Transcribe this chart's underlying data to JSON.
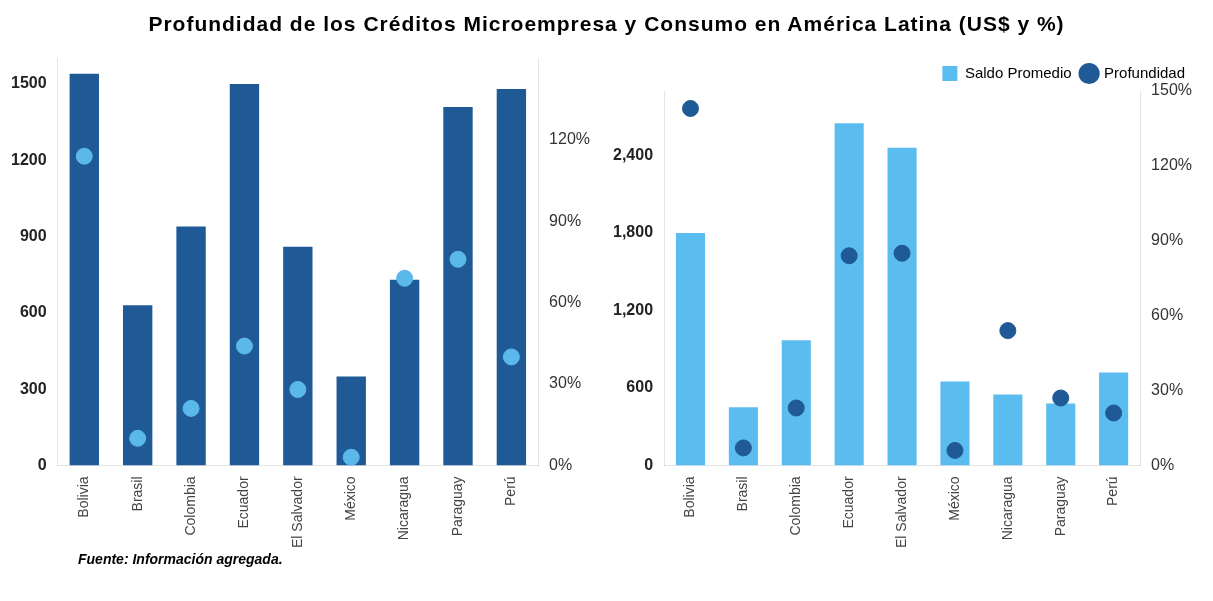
{
  "chart_data": [
    {
      "type": "bar",
      "title": "Profundidad de los Créditos Microempresa y Consumo en América Latina (US$ y %)",
      "categories": [
        "Bolivia",
        "Brasil",
        "Colombia",
        "Ecuador",
        "El Salvador",
        "México",
        "Nicaragua",
        "Paraguay",
        "Perú"
      ],
      "series": [
        {
          "type": "bar",
          "color": "#1f5a96",
          "values": [
            1540,
            630,
            940,
            1500,
            860,
            350,
            730,
            1410,
            1480
          ]
        },
        {
          "type": "scatter",
          "axis": "y2",
          "color": "#5bb8ea",
          "x": [
            "Bolivia",
            "Brasil",
            "Colombia",
            "Ecuador",
            "El Salvador",
            "México",
            "Nicaragua",
            "Paraguay",
            "Perú"
          ],
          "values": [
            114,
            10,
            21,
            44,
            28,
            3,
            69,
            76,
            40
          ]
        }
      ],
      "ylim": [
        0,
        1600
      ],
      "yticks": [
        0,
        300,
        600,
        900,
        1200,
        1500
      ],
      "y2lim": [
        0,
        150
      ],
      "y2ticks": [
        {
          "value": 0,
          "label": "0%"
        },
        {
          "value": 30,
          "label": "30%"
        },
        {
          "value": 60,
          "label": "60%"
        },
        {
          "value": 90,
          "label": "90%"
        },
        {
          "value": 120,
          "label": "120%"
        }
      ],
      "marker": "circle",
      "annotations": [
        "Fuente: Información agregada."
      ]
    },
    {
      "type": "bar",
      "categories": [
        "Bolivia",
        "Brasil",
        "Colombia",
        "Ecuador",
        "El Salvador",
        "México",
        "Nicaragua",
        "Paraguay",
        "Perú"
      ],
      "series": [
        {
          "type": "bar",
          "name": "Saldo Promedio",
          "color": "#5bbcf0",
          "values": [
            1800,
            450,
            970,
            2650,
            2460,
            650,
            550,
            480,
            720
          ]
        },
        {
          "type": "scatter",
          "name": "Profundidad",
          "axis": "y2",
          "color": "#1f5a96",
          "x": [
            "Bolivia",
            "Brasil",
            "Colombia",
            "Ecuador",
            "El Salvador",
            "México",
            "Nicaragua",
            "Paraguay",
            "Perú"
          ],
          "values": [
            143,
            7,
            23,
            84,
            85,
            6,
            54,
            27,
            21
          ]
        }
      ],
      "ylim": [
        0,
        2900
      ],
      "yticks": [
        0,
        600,
        {
          "value": 1200,
          "label": "1,200"
        },
        {
          "value": 1800,
          "label": "1,800"
        },
        {
          "value": 2400,
          "label": "2,400"
        }
      ],
      "y2lim": [
        0,
        150
      ],
      "y2ticks": [
        {
          "value": 0,
          "label": "0%"
        },
        {
          "value": 30,
          "label": "30%"
        },
        {
          "value": 60,
          "label": "60%"
        },
        {
          "value": 90,
          "label": "90%"
        },
        {
          "value": 120,
          "label": "120%"
        },
        {
          "value": 150,
          "label": "150%"
        }
      ],
      "marker": "circle",
      "legend": "top right"
    }
  ]
}
